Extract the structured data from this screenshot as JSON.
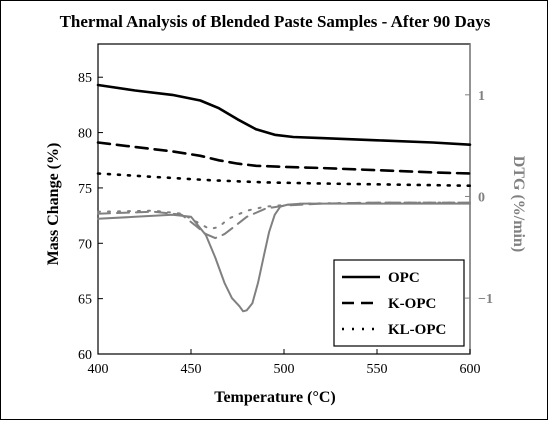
{
  "chart_data": {
    "type": "line",
    "title": "Thermal Analysis of Blended Paste Samples - After 90 Days",
    "xlabel": "Temperature (°C)",
    "ylabel": "Mass Change (%)",
    "y2label": "DTG (%/min)",
    "xlim": [
      400,
      600
    ],
    "ylim": [
      60,
      88
    ],
    "y2lim": [
      -1.55,
      1.5
    ],
    "x_ticks": [
      400,
      450,
      500,
      550,
      600
    ],
    "y_ticks": [
      60,
      65,
      70,
      75,
      80,
      85
    ],
    "y2_ticks": [
      1,
      0,
      -1
    ],
    "y2_tick_labels": [
      "1",
      "0",
      "−1"
    ],
    "legend_position": "bottom-right",
    "colors": {
      "mass": "#000000",
      "dtg": "#808080"
    },
    "series": [
      {
        "name": "OPC",
        "axis": "left",
        "dash": "solid",
        "x": [
          400,
          420,
          440,
          455,
          465,
          475,
          485,
          495,
          505,
          520,
          550,
          580,
          600
        ],
        "y": [
          84.3,
          83.8,
          83.4,
          82.9,
          82.2,
          81.2,
          80.3,
          79.8,
          79.6,
          79.5,
          79.3,
          79.1,
          78.9
        ]
      },
      {
        "name": "K-OPC",
        "axis": "left",
        "dash": "dashed",
        "x": [
          400,
          420,
          440,
          455,
          465,
          475,
          485,
          500,
          520,
          550,
          580,
          600
        ],
        "y": [
          79.1,
          78.7,
          78.3,
          77.9,
          77.5,
          77.2,
          77.0,
          76.9,
          76.8,
          76.6,
          76.4,
          76.3
        ]
      },
      {
        "name": "KL-OPC",
        "axis": "left",
        "dash": "dotted",
        "x": [
          400,
          430,
          460,
          490,
          520,
          560,
          600
        ],
        "y": [
          76.3,
          76.0,
          75.7,
          75.5,
          75.4,
          75.3,
          75.2
        ]
      },
      {
        "name": "OPC DTG",
        "axis": "right",
        "dash": "solid",
        "x": [
          400,
          420,
          440,
          450,
          458,
          463,
          468,
          472,
          476,
          478,
          480,
          483,
          486,
          489,
          492,
          495,
          498,
          502,
          510,
          530,
          560,
          600
        ],
        "y": [
          -0.22,
          -0.2,
          -0.18,
          -0.2,
          -0.38,
          -0.6,
          -0.85,
          -1.0,
          -1.08,
          -1.13,
          -1.12,
          -1.05,
          -0.85,
          -0.6,
          -0.35,
          -0.18,
          -0.1,
          -0.08,
          -0.07,
          -0.07,
          -0.07,
          -0.07
        ]
      },
      {
        "name": "K-OPC DTG",
        "axis": "right",
        "dash": "dashed",
        "x": [
          400,
          430,
          445,
          452,
          458,
          463,
          468,
          473,
          480,
          490,
          500,
          520,
          550,
          600
        ],
        "y": [
          -0.17,
          -0.15,
          -0.18,
          -0.28,
          -0.37,
          -0.41,
          -0.37,
          -0.3,
          -0.2,
          -0.12,
          -0.09,
          -0.07,
          -0.06,
          -0.06
        ]
      },
      {
        "name": "KL-OPC DTG",
        "axis": "right",
        "dash": "dotted",
        "x": [
          400,
          430,
          445,
          455,
          460,
          465,
          470,
          480,
          490,
          510,
          550,
          600
        ],
        "y": [
          -0.15,
          -0.14,
          -0.17,
          -0.27,
          -0.32,
          -0.3,
          -0.22,
          -0.14,
          -0.1,
          -0.07,
          -0.06,
          -0.06
        ]
      }
    ],
    "legend": [
      "OPC",
      "K-OPC",
      "KL-OPC"
    ]
  }
}
